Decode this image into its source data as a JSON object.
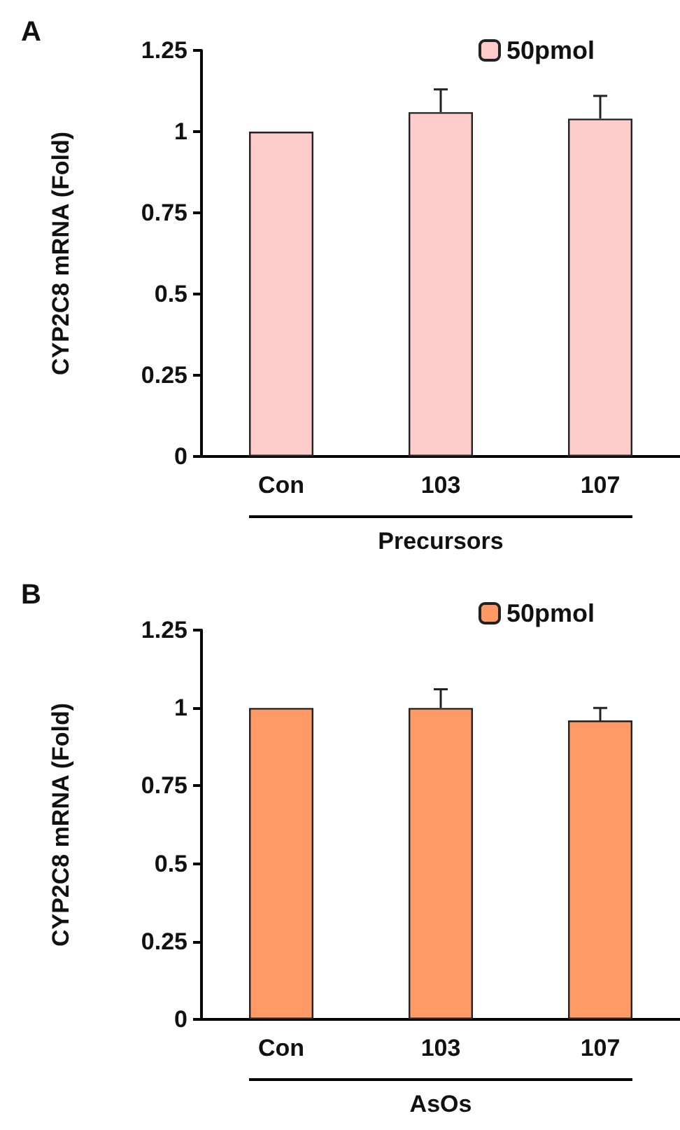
{
  "chart_data": [
    {
      "type": "bar",
      "title": "A",
      "xlabel": "Precursors",
      "ylabel": "CYP2C8 mRNA (Fold)",
      "categories": [
        "Con",
        "103",
        "107"
      ],
      "series": [
        {
          "name": "50pmol",
          "color": "#ffcccc",
          "values": [
            1,
            1.06,
            1.04
          ],
          "errors": [
            null,
            [
              1.06,
              1.13
            ],
            [
              1.04,
              1.11
            ]
          ]
        }
      ],
      "ylim": [
        0,
        1.25
      ],
      "yticks": [
        0,
        0.25,
        0.5,
        0.75,
        1,
        1.25
      ],
      "legend": "top right"
    },
    {
      "type": "bar",
      "title": "B",
      "xlabel": "AsOs",
      "ylabel": "CYP2C8 mRNA (Fold)",
      "categories": [
        "Con",
        "103",
        "107"
      ],
      "series": [
        {
          "name": "50pmol",
          "color": "#ff9966",
          "values": [
            1,
            1,
            0.96
          ],
          "errors": [
            null,
            [
              1,
              1.06
            ],
            [
              0.96,
              1.0
            ]
          ]
        }
      ],
      "ylim": [
        0,
        1.25
      ],
      "yticks": [
        0,
        0.25,
        0.5,
        0.75,
        1,
        1.25
      ],
      "legend": "top right"
    }
  ]
}
